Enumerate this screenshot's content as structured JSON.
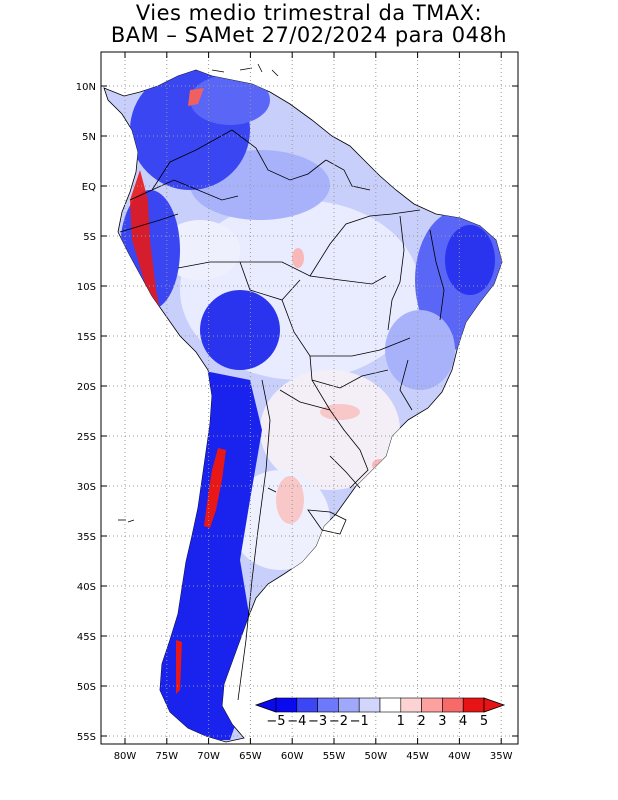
{
  "title_line1": "Vies medio trimestral da TMAX:",
  "title_line2": "BAM – SAMet 27/02/2024  para 048h",
  "lat_labels": [
    "10N",
    "5N",
    "EQ",
    "5S",
    "10S",
    "15S",
    "20S",
    "25S",
    "30S",
    "35S",
    "40S",
    "45S",
    "50S",
    "55S"
  ],
  "lon_labels": [
    "80W",
    "75W",
    "70W",
    "65W",
    "60W",
    "55W",
    "50W",
    "45W",
    "40W",
    "35W"
  ],
  "colorbar": {
    "labels": [
      "−5",
      "−4",
      "−3",
      "−2",
      "−1",
      "1",
      "2",
      "3",
      "4",
      "5"
    ],
    "colors": [
      "#0a0af0",
      "#3c46f5",
      "#6e78fa",
      "#a0a8fc",
      "#d2d6fd",
      "#ffffff",
      "#fcd2d2",
      "#fca0a0",
      "#f66a6a",
      "#e61414"
    ]
  },
  "colors": {
    "land_base": "#c8cffa",
    "strong_blue": "#1a22ee",
    "mid_blue": "#5a66f6",
    "light_blue": "#a8b2fb",
    "pale": "#e9ecfe",
    "red": "#e81818",
    "pink": "#f8b8b8"
  }
}
